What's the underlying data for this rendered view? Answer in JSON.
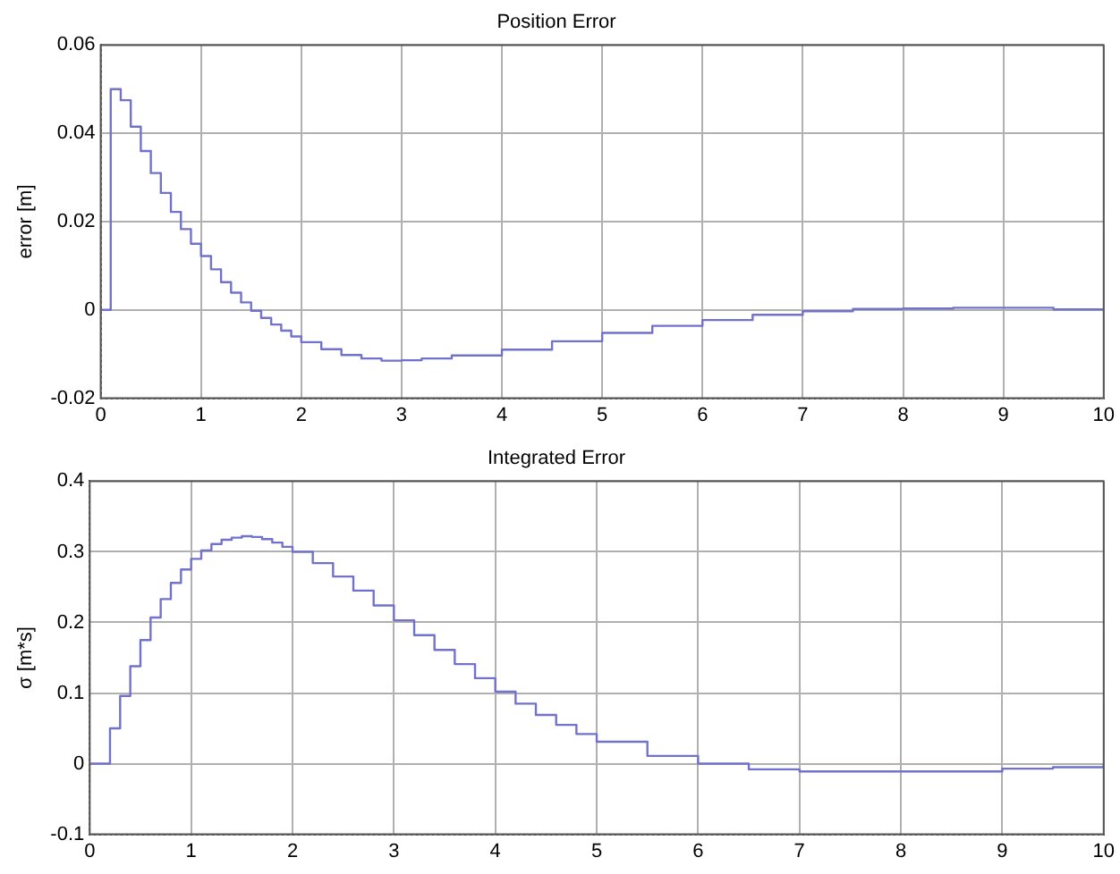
{
  "chart_data": [
    {
      "type": "step",
      "title": "Position Error",
      "ylabel": "error [m]",
      "xlim": [
        0,
        10
      ],
      "xticks": [
        0,
        1,
        2,
        3,
        4,
        5,
        6,
        7,
        8,
        9,
        10
      ],
      "ylim": [
        -0.02,
        0.06
      ],
      "yticks": [
        -0.02,
        0,
        0.02,
        0.04,
        0.06
      ],
      "grid": true,
      "line_style": "solid",
      "series": [
        {
          "color": "#7272cc",
          "x": [
            0,
            0.1,
            0.2,
            0.3,
            0.4,
            0.5,
            0.6,
            0.7,
            0.8,
            0.9,
            1.0,
            1.1,
            1.2,
            1.3,
            1.4,
            1.5,
            1.6,
            1.7,
            1.8,
            1.9,
            2.0,
            2.2,
            2.4,
            2.6,
            2.8,
            3.0,
            3.2,
            3.5,
            4.0,
            4.5,
            5.0,
            5.5,
            6.0,
            6.5,
            7.0,
            7.5,
            8.0,
            8.5,
            9.0,
            9.5,
            10
          ],
          "values": [
            0,
            0.05,
            0.0475,
            0.0415,
            0.036,
            0.031,
            0.0265,
            0.0222,
            0.0183,
            0.015,
            0.0122,
            0.0092,
            0.0063,
            0.0039,
            0.0017,
            -0.0002,
            -0.0018,
            -0.0033,
            -0.0047,
            -0.006,
            -0.0073,
            -0.0089,
            -0.0102,
            -0.011,
            -0.0115,
            -0.0114,
            -0.011,
            -0.0103,
            -0.009,
            -0.0071,
            -0.0052,
            -0.0036,
            -0.0023,
            -0.0011,
            -0.0003,
            0.0002,
            0.0003,
            0.0005,
            0.0005,
            0.0001,
            0
          ]
        }
      ]
    },
    {
      "type": "step",
      "title": "Integrated Error",
      "ylabel": "σ [m*s]",
      "xlim": [
        0,
        10
      ],
      "xticks": [
        0,
        1,
        2,
        3,
        4,
        5,
        6,
        7,
        8,
        9,
        10
      ],
      "ylim": [
        -0.1,
        0.4
      ],
      "yticks": [
        -0.1,
        0,
        0.1,
        0.2,
        0.3,
        0.4
      ],
      "grid": true,
      "line_style": "solid",
      "series": [
        {
          "color": "#7272cc",
          "x": [
            0,
            0.1,
            0.2,
            0.3,
            0.4,
            0.5,
            0.6,
            0.7,
            0.8,
            0.9,
            1.0,
            1.1,
            1.2,
            1.3,
            1.4,
            1.5,
            1.6,
            1.7,
            1.8,
            1.9,
            2.0,
            2.2,
            2.4,
            2.6,
            2.8,
            3.0,
            3.2,
            3.4,
            3.6,
            3.8,
            4.0,
            4.2,
            4.4,
            4.6,
            4.8,
            5.0,
            5.5,
            6.0,
            6.5,
            7.0,
            8.0,
            9.0,
            9.5,
            10
          ],
          "values": [
            0,
            0,
            0.05,
            0.096,
            0.138,
            0.175,
            0.207,
            0.233,
            0.256,
            0.275,
            0.29,
            0.302,
            0.311,
            0.317,
            0.32,
            0.322,
            0.321,
            0.318,
            0.313,
            0.307,
            0.3,
            0.284,
            0.265,
            0.245,
            0.224,
            0.203,
            0.182,
            0.161,
            0.141,
            0.121,
            0.102,
            0.085,
            0.069,
            0.055,
            0.042,
            0.031,
            0.011,
            0,
            -0.008,
            -0.011,
            -0.011,
            -0.007,
            -0.005,
            0
          ]
        }
      ]
    }
  ]
}
